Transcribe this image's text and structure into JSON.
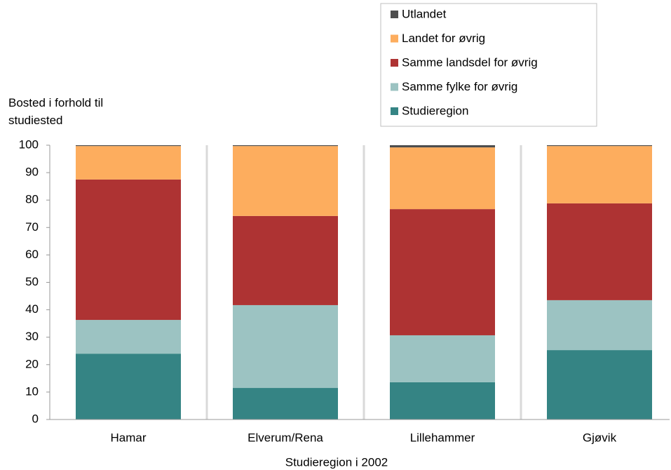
{
  "chart_data": {
    "type": "stacked_bar",
    "y_label": "Bosted i forhold til studiested",
    "x_label": "Studieregion i 2002",
    "categories": [
      "Hamar",
      "Elverum/Rena",
      "Lillehammer",
      "Gjøvik"
    ],
    "series": [
      {
        "name": "Studieregion",
        "color": "#358484",
        "values": [
          24.0,
          11.5,
          13.6,
          25.3
        ]
      },
      {
        "name": "Samme fylke for øvrig",
        "color": "#9cc3c2",
        "values": [
          12.3,
          30.2,
          17.1,
          18.2
        ]
      },
      {
        "name": "Samme landsdel for øvrig",
        "color": "#ae3333",
        "values": [
          51.2,
          32.5,
          46.0,
          35.3
        ]
      },
      {
        "name": "Landet for øvrig",
        "color": "#fdad5e",
        "values": [
          12.2,
          25.5,
          22.5,
          20.9
        ]
      },
      {
        "name": "Utlandet",
        "color": "#4d4d4d",
        "values": [
          0.3,
          0.3,
          0.8,
          0.3
        ]
      }
    ],
    "ylim": [
      0,
      100
    ],
    "yticks": [
      0,
      10,
      20,
      30,
      40,
      50,
      60,
      70,
      80,
      90,
      100
    ],
    "grid": "x",
    "legend": "top-right"
  }
}
